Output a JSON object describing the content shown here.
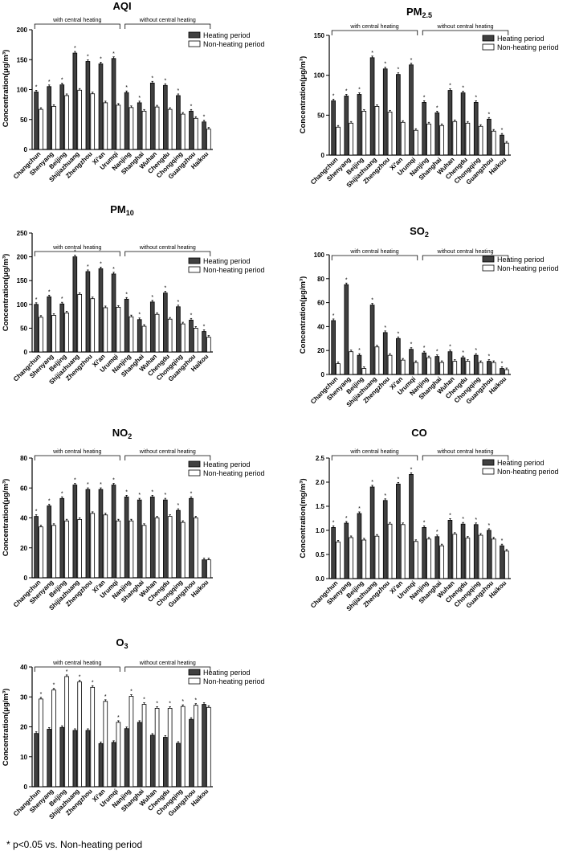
{
  "chart_data": [
    {
      "type": "bar",
      "title": "AQI",
      "title_sub": "",
      "ylabel": "Concentration(μg/m³)",
      "ylim": [
        0,
        200
      ],
      "yticks": [
        "0",
        "50",
        "100",
        "150",
        "200"
      ],
      "categories": [
        "Changchun",
        "Shenyang",
        "Beijing",
        "Shijiazhuang",
        "Zhengzhou",
        "Xi'an",
        "Urumqi",
        "Nanjing",
        "Shanghai",
        "Wuhan",
        "Chengdu",
        "Chongqing",
        "Guangzhou",
        "Haikou"
      ],
      "groups": [
        "with central heating",
        "without central heating"
      ],
      "series": [
        {
          "name": "Heating period",
          "values": [
            96,
            105,
            108,
            161,
            147,
            143,
            152,
            95,
            78,
            111,
            107,
            90,
            64,
            46
          ]
        },
        {
          "name": "Non-heating period",
          "values": [
            67,
            72,
            90,
            99,
            93,
            78,
            74,
            70,
            64,
            71,
            67,
            59,
            52,
            34
          ]
        }
      ],
      "significant": [
        true,
        true,
        true,
        true,
        true,
        true,
        true,
        true,
        true,
        true,
        true,
        true,
        true,
        true
      ]
    },
    {
      "type": "bar",
      "title": "PM",
      "title_sub": "2.5",
      "ylabel": "Concentration(μg/m³)",
      "ylim": [
        0,
        150
      ],
      "yticks": [
        "0",
        "50",
        "100",
        "150"
      ],
      "categories": [
        "Changchun",
        "Shenyang",
        "Beijing",
        "Shijiazhuang",
        "Zhengzhou",
        "Xi'an",
        "Urumqi",
        "Nanjing",
        "Shanghai",
        "Wuhan",
        "Chengdu",
        "Chongqing",
        "Guangzhou",
        "Haikou"
      ],
      "groups": [
        "with central heating",
        "without central heating"
      ],
      "series": [
        {
          "name": "Heating period",
          "values": [
            68,
            74,
            76,
            122,
            108,
            101,
            113,
            66,
            53,
            81,
            78,
            66,
            45,
            25
          ]
        },
        {
          "name": "Non-heating period",
          "values": [
            35,
            40,
            55,
            61,
            54,
            41,
            31,
            39,
            37,
            42,
            40,
            36,
            30,
            15
          ]
        }
      ],
      "significant": [
        true,
        true,
        true,
        true,
        true,
        true,
        true,
        true,
        true,
        true,
        true,
        true,
        true,
        true
      ]
    },
    {
      "type": "bar",
      "title": "PM",
      "title_sub": "10",
      "ylabel": "Concentration(μg/m³)",
      "ylim": [
        0,
        250
      ],
      "yticks": [
        "0",
        "50",
        "100",
        "150",
        "200",
        "250"
      ],
      "categories": [
        "Changchun",
        "Shenyang",
        "Beijing",
        "Shijiazhuang",
        "Zhengzhou",
        "Xi'an",
        "Urumqi",
        "Nanjing",
        "Shanghai",
        "Wuhan",
        "Chengdu",
        "Chongqing",
        "Guangzhou",
        "Haikou"
      ],
      "groups": [
        "with central heating",
        "without central heating"
      ],
      "series": [
        {
          "name": "Heating period",
          "values": [
            100,
            116,
            101,
            200,
            169,
            175,
            164,
            111,
            68,
            105,
            124,
            95,
            67,
            43
          ]
        },
        {
          "name": "Non-heating period",
          "values": [
            73,
            77,
            82,
            121,
            112,
            93,
            94,
            74,
            54,
            79,
            69,
            59,
            50,
            31
          ]
        }
      ],
      "significant": [
        true,
        true,
        true,
        true,
        true,
        true,
        true,
        true,
        true,
        true,
        true,
        true,
        true,
        true
      ]
    },
    {
      "type": "bar",
      "title": "SO",
      "title_sub": "2",
      "ylabel": "Concentration(μg/m³)",
      "ylim": [
        0,
        100
      ],
      "yticks": [
        "0",
        "20",
        "40",
        "60",
        "80",
        "100"
      ],
      "categories": [
        "Changchun",
        "Shenyang",
        "Beijing",
        "Shijiazhuang",
        "Zhengzhou",
        "Xi'an",
        "Urumqi",
        "Nanjing",
        "Shanghai",
        "Wuhan",
        "Chengdu",
        "Chongqing",
        "Guangzhou",
        "Haikou"
      ],
      "groups": [
        "with central heating",
        "without central heating"
      ],
      "series": [
        {
          "name": "Heating period",
          "values": [
            45,
            75,
            16,
            58,
            35,
            30,
            21,
            18,
            15,
            19,
            14,
            16,
            11,
            5
          ]
        },
        {
          "name": "Non-heating period",
          "values": [
            9,
            19,
            5,
            23,
            16,
            12,
            10,
            14,
            10,
            11,
            11,
            10,
            10,
            4
          ]
        }
      ],
      "significant": [
        true,
        true,
        true,
        true,
        true,
        true,
        true,
        true,
        true,
        true,
        true,
        true,
        true,
        true
      ]
    },
    {
      "type": "bar",
      "title": "NO",
      "title_sub": "2",
      "ylabel": "Concentration(μg/m³)",
      "ylim": [
        0,
        80
      ],
      "yticks": [
        "0",
        "20",
        "40",
        "60",
        "80"
      ],
      "categories": [
        "Changchun",
        "Shenyang",
        "Beijing",
        "Shijiazhuang",
        "Zhengzhou",
        "Xi'an",
        "Urumqi",
        "Nanjing",
        "Shanghai",
        "Wuhan",
        "Chengdu",
        "Chongqing",
        "Guangzhou",
        "Haikou"
      ],
      "groups": [
        "with central heating",
        "without central heating"
      ],
      "series": [
        {
          "name": "Heating period",
          "values": [
            41,
            48,
            53,
            62,
            59,
            59,
            62,
            54,
            52,
            54,
            52,
            45,
            53,
            12
          ]
        },
        {
          "name": "Non-heating period",
          "values": [
            34,
            35,
            38,
            39,
            43,
            42,
            38,
            38,
            35,
            40,
            41,
            37,
            40,
            12
          ]
        }
      ],
      "significant": [
        true,
        true,
        true,
        true,
        true,
        true,
        true,
        true,
        true,
        true,
        true,
        true,
        true,
        false
      ]
    },
    {
      "type": "bar",
      "title": "CO",
      "title_sub": "",
      "ylabel": "Concentration(mg/m³)",
      "ylim": [
        0,
        2.5
      ],
      "yticks": [
        "0.0",
        "0.5",
        "1.0",
        "1.5",
        "2.0",
        "2.5"
      ],
      "categories": [
        "Changchun",
        "Shenyang",
        "Beijing",
        "Shijiazhuang",
        "Zhengzhou",
        "Xi'an",
        "Urumqi",
        "Nanjing",
        "Shanghai",
        "Wuhan",
        "Chengdu",
        "Chongqing",
        "Guangzhou",
        "Haikou"
      ],
      "groups": [
        "with central heating",
        "without central heating"
      ],
      "series": [
        {
          "name": "Heating period",
          "values": [
            1.06,
            1.15,
            1.35,
            1.9,
            1.62,
            1.96,
            2.16,
            1.06,
            0.87,
            1.21,
            1.13,
            1.12,
            1.0,
            0.68
          ]
        },
        {
          "name": "Non-heating period",
          "values": [
            0.76,
            0.85,
            0.8,
            0.88,
            1.13,
            1.12,
            0.77,
            0.82,
            0.68,
            0.92,
            0.84,
            0.9,
            0.82,
            0.57
          ]
        }
      ],
      "significant": [
        true,
        true,
        true,
        true,
        true,
        true,
        true,
        true,
        true,
        true,
        true,
        true,
        true,
        true
      ]
    },
    {
      "type": "bar",
      "title": "O",
      "title_sub": "3",
      "ylabel": "Concentration(μg/m³)",
      "ylim": [
        0,
        40
      ],
      "yticks": [
        "0",
        "10",
        "20",
        "30",
        "40"
      ],
      "categories": [
        "Changchun",
        "Shenyang",
        "Beijing",
        "Shijiazhuang",
        "Zhengzhou",
        "Xi'an",
        "Urumqi",
        "Nanjing",
        "Shanghai",
        "Wuhan",
        "Chengdu",
        "Chongqing",
        "Guangzhou",
        "Haikou"
      ],
      "groups": [
        "with central heating",
        "without central heating"
      ],
      "series": [
        {
          "name": "Heating period",
          "values": [
            17.8,
            19.2,
            19.8,
            18.8,
            18.8,
            14.4,
            14.8,
            19.4,
            21.5,
            17.2,
            16.5,
            14.5,
            22.5,
            27.5
          ]
        },
        {
          "name": "Non-heating period",
          "values": [
            29.3,
            32.3,
            36.8,
            35.0,
            33.2,
            28.5,
            21.5,
            30.2,
            27.5,
            26.2,
            26.2,
            26.8,
            27.2,
            26.5
          ]
        }
      ],
      "significant": [
        true,
        true,
        true,
        true,
        true,
        true,
        true,
        true,
        true,
        true,
        true,
        true,
        true,
        false
      ]
    }
  ],
  "footnote": "* p<0.05 vs. Non-heating period",
  "colors": {
    "heating": "#404040",
    "nonheating": "#ffffff",
    "axis": "#000000"
  }
}
